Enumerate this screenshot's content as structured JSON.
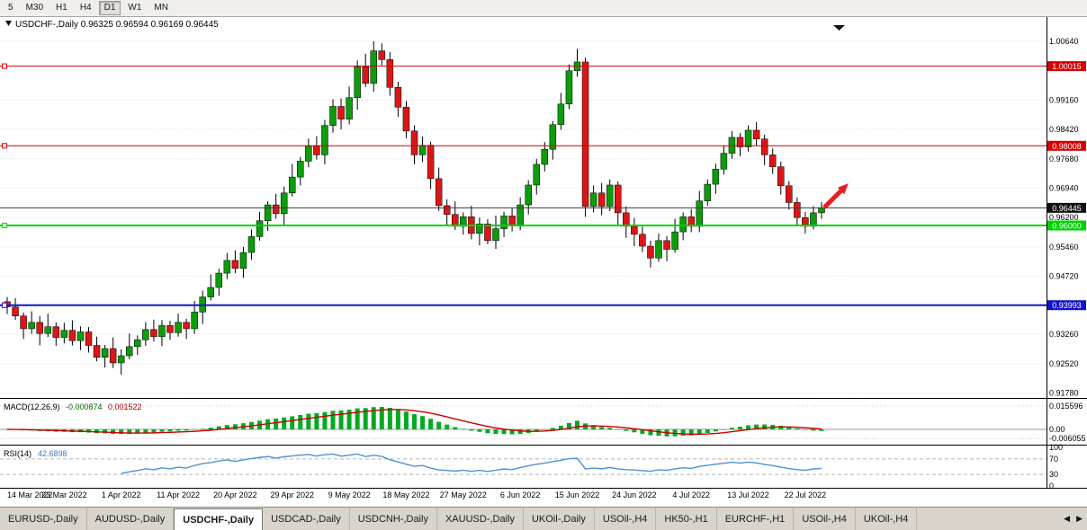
{
  "toolbar": {
    "timeframes": [
      {
        "label": "5",
        "active": false
      },
      {
        "label": "M30",
        "active": false
      },
      {
        "label": "H1",
        "active": false
      },
      {
        "label": "H4",
        "active": false
      },
      {
        "label": "D1",
        "active": true
      },
      {
        "label": "W1",
        "active": false
      },
      {
        "label": "MN",
        "active": false
      }
    ]
  },
  "tabs": {
    "items": [
      {
        "label": "EURUSD-,Daily",
        "active": false
      },
      {
        "label": "AUDUSD-,Daily",
        "active": false
      },
      {
        "label": "USDCHF-,Daily",
        "active": true
      },
      {
        "label": "USDCAD-,Daily",
        "active": false
      },
      {
        "label": "USDCNH-,Daily",
        "active": false
      },
      {
        "label": "XAUUSD-,Daily",
        "active": false
      },
      {
        "label": "UKOil-,Daily",
        "active": false
      },
      {
        "label": "USOil-,H4",
        "active": false
      },
      {
        "label": "HK50-,H1",
        "active": false
      },
      {
        "label": "EURCHF-,H1",
        "active": false
      },
      {
        "label": "USOil-,H4",
        "active": false
      },
      {
        "label": "UKOil-,H4",
        "active": false
      }
    ],
    "scroll_left": "◀",
    "scroll_right": "▶"
  },
  "chart_data": [
    {
      "type": "candlestick",
      "symbol": "USDCHF-,Daily",
      "ohlc_text": "0.96325 0.96594 0.96169 0.96445",
      "price_scale": 10000,
      "bull_color": "#0c9c0c",
      "bear_color": "#dc1616",
      "wick_color": "#000000",
      "candles": [
        [
          9408,
          9420,
          9377,
          9395
        ],
        [
          9395,
          9417,
          9362,
          9372
        ],
        [
          9372,
          9381,
          9314,
          9340
        ],
        [
          9340,
          9384,
          9327,
          9356
        ],
        [
          9356,
          9372,
          9298,
          9328
        ],
        [
          9328,
          9378,
          9319,
          9345
        ],
        [
          9345,
          9356,
          9297,
          9318
        ],
        [
          9318,
          9355,
          9303,
          9336
        ],
        [
          9336,
          9361,
          9298,
          9310
        ],
        [
          9310,
          9346,
          9286,
          9332
        ],
        [
          9332,
          9344,
          9280,
          9298
        ],
        [
          9298,
          9320,
          9258,
          9268
        ],
        [
          9268,
          9299,
          9242,
          9290
        ],
        [
          9290,
          9318,
          9241,
          9254
        ],
        [
          9254,
          9288,
          9224,
          9272
        ],
        [
          9272,
          9328,
          9263,
          9295
        ],
        [
          9295,
          9323,
          9274,
          9312
        ],
        [
          9312,
          9357,
          9297,
          9338
        ],
        [
          9338,
          9363,
          9308,
          9320
        ],
        [
          9320,
          9362,
          9296,
          9348
        ],
        [
          9348,
          9360,
          9312,
          9330
        ],
        [
          9330,
          9378,
          9320,
          9356
        ],
        [
          9356,
          9365,
          9314,
          9340
        ],
        [
          9340,
          9410,
          9327,
          9382
        ],
        [
          9382,
          9436,
          9352,
          9420
        ],
        [
          9420,
          9477,
          9411,
          9444
        ],
        [
          9444,
          9491,
          9423,
          9480
        ],
        [
          9480,
          9531,
          9465,
          9512
        ],
        [
          9512,
          9537,
          9480,
          9492
        ],
        [
          9492,
          9546,
          9468,
          9532
        ],
        [
          9532,
          9590,
          9514,
          9572
        ],
        [
          9572,
          9634,
          9562,
          9612
        ],
        [
          9612,
          9661,
          9586,
          9652
        ],
        [
          9652,
          9680,
          9617,
          9630
        ],
        [
          9630,
          9698,
          9600,
          9682
        ],
        [
          9682,
          9755,
          9673,
          9722
        ],
        [
          9722,
          9773,
          9701,
          9762
        ],
        [
          9762,
          9819,
          9747,
          9800
        ],
        [
          9800,
          9825,
          9766,
          9778
        ],
        [
          9778,
          9866,
          9754,
          9852
        ],
        [
          9852,
          9918,
          9834,
          9900
        ],
        [
          9900,
          9920,
          9842,
          9868
        ],
        [
          9868,
          9950,
          9855,
          9922
        ],
        [
          9922,
          10016,
          9892,
          10000
        ],
        [
          10000,
          10033,
          9949,
          9958
        ],
        [
          9958,
          10064,
          9937,
          10040
        ],
        [
          10040,
          10059,
          10003,
          10018
        ],
        [
          10018,
          10037,
          9927,
          9948
        ],
        [
          9948,
          9962,
          9874,
          9898
        ],
        [
          9898,
          9914,
          9820,
          9838
        ],
        [
          9838,
          9852,
          9754,
          9778
        ],
        [
          9778,
          9824,
          9760,
          9802
        ],
        [
          9802,
          9811,
          9692,
          9718
        ],
        [
          9718,
          9746,
          9637,
          9650
        ],
        [
          9650,
          9666,
          9598,
          9628
        ],
        [
          9628,
          9661,
          9589,
          9598
        ],
        [
          9598,
          9633,
          9577,
          9622
        ],
        [
          9622,
          9650,
          9565,
          9580
        ],
        [
          9580,
          9620,
          9550,
          9604
        ],
        [
          9604,
          9616,
          9553,
          9562
        ],
        [
          9562,
          9625,
          9541,
          9592
        ],
        [
          9592,
          9635,
          9571,
          9624
        ],
        [
          9624,
          9643,
          9585,
          9600
        ],
        [
          9600,
          9671,
          9588,
          9652
        ],
        [
          9652,
          9714,
          9628,
          9702
        ],
        [
          9702,
          9768,
          9678,
          9754
        ],
        [
          9754,
          9810,
          9736,
          9792
        ],
        [
          9792,
          9863,
          9766,
          9854
        ],
        [
          9854,
          9934,
          9841,
          9906
        ],
        [
          9906,
          10006,
          9893,
          9990
        ],
        [
          9990,
          10045,
          9975,
          10012
        ],
        [
          10012,
          10023,
          9622,
          9648
        ],
        [
          9648,
          9701,
          9633,
          9682
        ],
        [
          9682,
          9707,
          9626,
          9648
        ],
        [
          9648,
          9716,
          9636,
          9702
        ],
        [
          9702,
          9711,
          9602,
          9632
        ],
        [
          9632,
          9648,
          9569,
          9598
        ],
        [
          9598,
          9619,
          9548,
          9578
        ],
        [
          9578,
          9597,
          9533,
          9548
        ],
        [
          9548,
          9562,
          9494,
          9518
        ],
        [
          9518,
          9580,
          9509,
          9562
        ],
        [
          9562,
          9573,
          9510,
          9540
        ],
        [
          9540,
          9617,
          9531,
          9584
        ],
        [
          9584,
          9633,
          9563,
          9622
        ],
        [
          9622,
          9641,
          9583,
          9598
        ],
        [
          9598,
          9687,
          9583,
          9662
        ],
        [
          9662,
          9716,
          9650,
          9704
        ],
        [
          9704,
          9756,
          9680,
          9742
        ],
        [
          9742,
          9802,
          9728,
          9782
        ],
        [
          9782,
          9838,
          9768,
          9822
        ],
        [
          9822,
          9833,
          9774,
          9798
        ],
        [
          9798,
          9852,
          9786,
          9840
        ],
        [
          9840,
          9861,
          9800,
          9818
        ],
        [
          9818,
          9829,
          9752,
          9778
        ],
        [
          9778,
          9794,
          9730,
          9748
        ],
        [
          9748,
          9761,
          9678,
          9700
        ],
        [
          9700,
          9712,
          9640,
          9658
        ],
        [
          9658,
          9671,
          9601,
          9620
        ],
        [
          9620,
          9634,
          9580,
          9598
        ],
        [
          9598,
          9649,
          9590,
          9632
        ],
        [
          9632,
          9659,
          9617,
          9645
        ]
      ],
      "x_tick_every": 7,
      "x_tick_labels": [
        "14 Mar 2022",
        "23 Mar 2022",
        "1 Apr 2022",
        "11 Apr 2022",
        "20 Apr 2022",
        "29 Apr 2022",
        "9 May 2022",
        "18 May 2022",
        "27 May 2022",
        "6 Jun 2022",
        "15 Jun 2022",
        "24 Jun 2022",
        "4 Jul 2022",
        "13 Jul 2022",
        "22 Jul 2022"
      ],
      "y_axis_labels": [
        "1.00640",
        "0.99160",
        "0.98420",
        "0.97680",
        "0.96940",
        "0.96200",
        "0.95460",
        "0.94720",
        "0.93260",
        "0.92520",
        "0.91780"
      ],
      "hlines": [
        {
          "price": 1.00015,
          "label": "1.00015",
          "color": "#d40000",
          "width": 1,
          "marker": true
        },
        {
          "price": 0.98008,
          "label": "0.98008",
          "color": "#d40000",
          "width": 1,
          "marker": true
        },
        {
          "price": 0.96445,
          "label": "0.96445",
          "color": "#3a3a3a",
          "badge": "#111111",
          "width": 1,
          "marker": false
        },
        {
          "price": 0.96,
          "label": "0.96000",
          "color": "#00d200",
          "width": 2,
          "marker": true
        },
        {
          "price": 0.93993,
          "label": "0.93993",
          "color": "#1414c8",
          "width": 2,
          "marker": true
        }
      ],
      "arrow": {
        "direction": "up-right",
        "color": "#e62020"
      }
    },
    {
      "type": "macd",
      "label": "MACD(12,26,9)",
      "value_main": "-0.000874",
      "value_signal": "0.001522",
      "params": [
        12,
        26,
        9
      ],
      "axis_labels": {
        "top": "0.015596",
        "zero": "0.00",
        "bottom": "-0.006055"
      },
      "hist_color": "#00aa22",
      "signal_color": "#cc0000"
    },
    {
      "type": "rsi",
      "label": "RSI(14)",
      "value": "42.6898",
      "period": 14,
      "levels": [
        100,
        70,
        30,
        0
      ],
      "dashed_levels": [
        70,
        30
      ],
      "line_color": "#4f93d2"
    }
  ]
}
